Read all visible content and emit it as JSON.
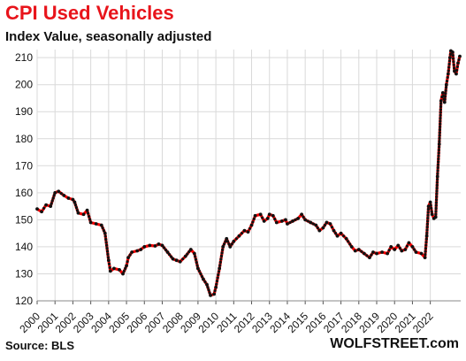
{
  "chart_data": {
    "type": "line",
    "title": "CPI Used Vehicles",
    "subtitle": "Index Value, seasonally adjusted",
    "ylim": [
      120,
      213
    ],
    "y_ticks": [
      120,
      130,
      140,
      150,
      160,
      170,
      180,
      190,
      200,
      210
    ],
    "x_tick_labels": [
      "2000",
      "2001",
      "2002",
      "2003",
      "2004",
      "2005",
      "2006",
      "2007",
      "2008",
      "2009",
      "2010",
      "2011",
      "2012",
      "2013",
      "2014",
      "2015",
      "2016",
      "2017",
      "2018",
      "2019",
      "2020",
      "2021",
      "2022"
    ],
    "grid": true,
    "series": [
      {
        "line_color": "#ff0000",
        "marker_color": "#111111",
        "points": [
          [
            2000.0,
            154
          ],
          [
            2000.25,
            153
          ],
          [
            2000.5,
            155.5
          ],
          [
            2000.75,
            155
          ],
          [
            2001.0,
            160
          ],
          [
            2001.2,
            160.5
          ],
          [
            2001.5,
            159
          ],
          [
            2001.75,
            158
          ],
          [
            2002.0,
            157.5
          ],
          [
            2002.1,
            156.5
          ],
          [
            2002.3,
            152.5
          ],
          [
            2002.6,
            152
          ],
          [
            2002.8,
            153.5
          ],
          [
            2003.0,
            149
          ],
          [
            2003.3,
            148.5
          ],
          [
            2003.6,
            148
          ],
          [
            2003.8,
            145
          ],
          [
            2004.0,
            135
          ],
          [
            2004.1,
            131
          ],
          [
            2004.3,
            132
          ],
          [
            2004.6,
            131.5
          ],
          [
            2004.8,
            130
          ],
          [
            2005.0,
            133
          ],
          [
            2005.1,
            136
          ],
          [
            2005.3,
            138
          ],
          [
            2005.6,
            138.5
          ],
          [
            2005.8,
            139
          ],
          [
            2006.0,
            140
          ],
          [
            2006.3,
            140.5
          ],
          [
            2006.6,
            140.3
          ],
          [
            2006.8,
            141
          ],
          [
            2007.0,
            140.5
          ],
          [
            2007.3,
            138
          ],
          [
            2007.6,
            135.5
          ],
          [
            2007.8,
            135
          ],
          [
            2008.0,
            134.5
          ],
          [
            2008.3,
            136.5
          ],
          [
            2008.6,
            139
          ],
          [
            2008.8,
            137.5
          ],
          [
            2009.0,
            132
          ],
          [
            2009.3,
            128
          ],
          [
            2009.5,
            126
          ],
          [
            2009.7,
            122
          ],
          [
            2009.9,
            122.5
          ],
          [
            2010.0,
            125
          ],
          [
            2010.2,
            132
          ],
          [
            2010.4,
            140
          ],
          [
            2010.6,
            143
          ],
          [
            2010.8,
            140
          ],
          [
            2011.0,
            142
          ],
          [
            2011.3,
            144
          ],
          [
            2011.6,
            146
          ],
          [
            2011.8,
            145.5
          ],
          [
            2012.0,
            148
          ],
          [
            2012.2,
            151.5
          ],
          [
            2012.5,
            152
          ],
          [
            2012.7,
            149.5
          ],
          [
            2012.9,
            150.5
          ],
          [
            2013.0,
            152
          ],
          [
            2013.2,
            151.5
          ],
          [
            2013.4,
            149
          ],
          [
            2013.7,
            149.5
          ],
          [
            2013.9,
            150
          ],
          [
            2014.0,
            148.5
          ],
          [
            2014.3,
            149.5
          ],
          [
            2014.6,
            150.5
          ],
          [
            2014.8,
            152
          ],
          [
            2015.0,
            150
          ],
          [
            2015.3,
            149
          ],
          [
            2015.6,
            148
          ],
          [
            2015.8,
            146
          ],
          [
            2016.0,
            147
          ],
          [
            2016.2,
            149
          ],
          [
            2016.4,
            148.5
          ],
          [
            2016.6,
            146
          ],
          [
            2016.8,
            144
          ],
          [
            2017.0,
            145
          ],
          [
            2017.3,
            143
          ],
          [
            2017.6,
            140
          ],
          [
            2017.8,
            138.5
          ],
          [
            2018.0,
            139
          ],
          [
            2018.3,
            137.5
          ],
          [
            2018.6,
            136
          ],
          [
            2018.8,
            138
          ],
          [
            2019.0,
            137.5
          ],
          [
            2019.3,
            138
          ],
          [
            2019.6,
            137.5
          ],
          [
            2019.8,
            140
          ],
          [
            2020.0,
            139
          ],
          [
            2020.2,
            140.5
          ],
          [
            2020.4,
            138.5
          ],
          [
            2020.6,
            139
          ],
          [
            2020.8,
            141.5
          ],
          [
            2021.0,
            140
          ],
          [
            2021.2,
            138
          ],
          [
            2021.5,
            137.5
          ],
          [
            2021.7,
            136
          ],
          [
            2021.8,
            144
          ],
          [
            2021.9,
            155
          ],
          [
            2022.0,
            156.5
          ],
          [
            2022.1,
            152
          ],
          [
            2022.2,
            150.5
          ],
          [
            2022.3,
            151
          ],
          [
            2022.4,
            166
          ],
          [
            2022.5,
            178
          ],
          [
            2022.6,
            194
          ],
          [
            2022.7,
            197
          ],
          [
            2022.8,
            193.5
          ],
          [
            2022.9,
            200
          ],
          [
            2023.0,
            204
          ],
          [
            2023.1,
            210
          ],
          [
            2023.15,
            212.5
          ],
          [
            2023.25,
            212
          ],
          [
            2023.35,
            205
          ],
          [
            2023.45,
            204
          ],
          [
            2023.55,
            208
          ],
          [
            2023.65,
            210.5
          ]
        ]
      }
    ],
    "source": "Source: BLS",
    "brand": "WOLFSTREET.com"
  }
}
